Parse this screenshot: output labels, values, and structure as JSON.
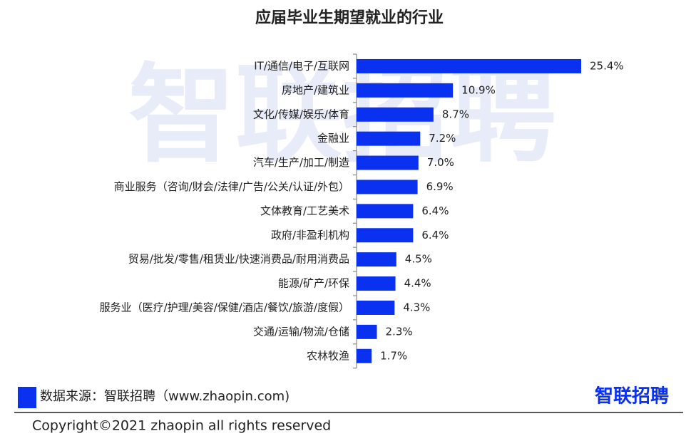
{
  "chart_data": {
    "type": "bar",
    "orientation": "horizontal",
    "title": "应届毕业生期望就业的行业",
    "categories": [
      "IT/通信/电子/互联网",
      "房地产/建筑业",
      "文化/传媒/娱乐/体育",
      "金融业",
      "汽车/生产/加工/制造",
      "商业服务（咨询/财会/法律/广告/公关/认证/外包）",
      "文体教育/工艺美术",
      "政府/非盈利机构",
      "贸易/批发/零售/租赁业/快速消费品/耐用消费品",
      "能源/矿产/环保",
      "服务业（医疗/护理/美容/保健/酒店/餐饮/旅游/度假）",
      "交通/运输/物流/仓储",
      "农林牧渔"
    ],
    "values": [
      25.4,
      10.9,
      8.7,
      7.2,
      7.0,
      6.9,
      6.4,
      6.4,
      4.5,
      4.4,
      4.3,
      2.3,
      1.7
    ],
    "value_labels": [
      "25.4%",
      "10.9%",
      "8.7%",
      "7.2%",
      "7.0%",
      "6.9%",
      "6.4%",
      "6.4%",
      "4.5%",
      "4.4%",
      "4.3%",
      "2.3%",
      "1.7%"
    ],
    "color": "#0a30f0",
    "source": "数据来源：智联招聘（www.zhaopin.com)",
    "logo": "智联招聘",
    "watermark": "智联招聘",
    "copyright": "Copyright©2021 zhaopin all rights reserved"
  }
}
